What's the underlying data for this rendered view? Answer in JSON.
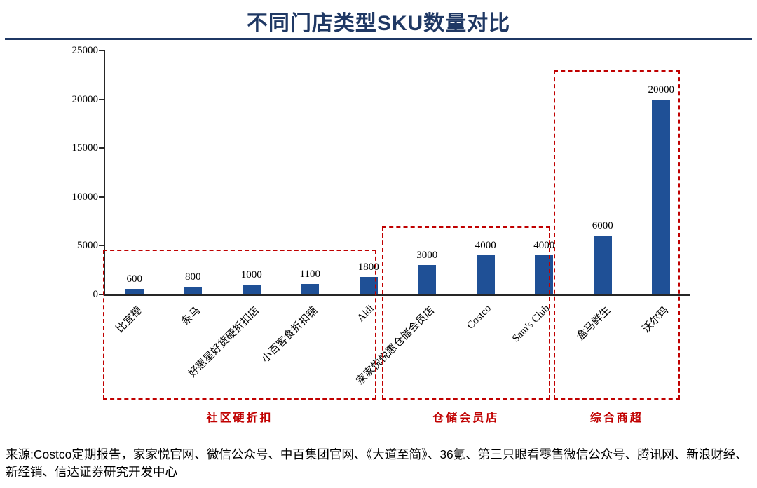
{
  "title": "不同门店类型SKU数量对比",
  "source": "来源:Costco定期报告，家家悦官网、微信公众号、中百集团官网、《大道至简》、36氪、第三只眼看零售微信公众号、腾讯网、新浪财经、新经销、信达证券研究开发中心",
  "chart_data": {
    "type": "bar",
    "title": "不同门店类型SKU数量对比",
    "categories": [
      "比宜德",
      "条马",
      "好惠星好货硬折扣店",
      "小百客食折扣铺",
      "Aldi",
      "家家悦悦惠仓储会员店",
      "Costco",
      "Sam's Club",
      "盒马鲜生",
      "沃尔玛"
    ],
    "values": [
      600,
      800,
      1000,
      1100,
      1800,
      3000,
      4000,
      4000,
      6000,
      20000
    ],
    "xlabel": "",
    "ylabel": "",
    "ylim": [
      0,
      25000
    ],
    "yticks": [
      0,
      5000,
      10000,
      15000,
      20000,
      25000
    ],
    "grid": "off",
    "legend": "none",
    "bar_color": "#1f5096",
    "annotation_color": "#c00000",
    "groups": [
      {
        "label": "社区硬折扣",
        "start": 0,
        "end": 4,
        "x0": -0.04,
        "x1": 4.64,
        "top_value": 4600
      },
      {
        "label": "仓储会员店",
        "start": 5,
        "end": 7,
        "x0": 4.73,
        "x1": 7.6,
        "top_value": 7000
      },
      {
        "label": "综合商超",
        "start": 8,
        "end": 9,
        "x0": 7.66,
        "x1": 9.82,
        "top_value": 23000
      }
    ]
  }
}
